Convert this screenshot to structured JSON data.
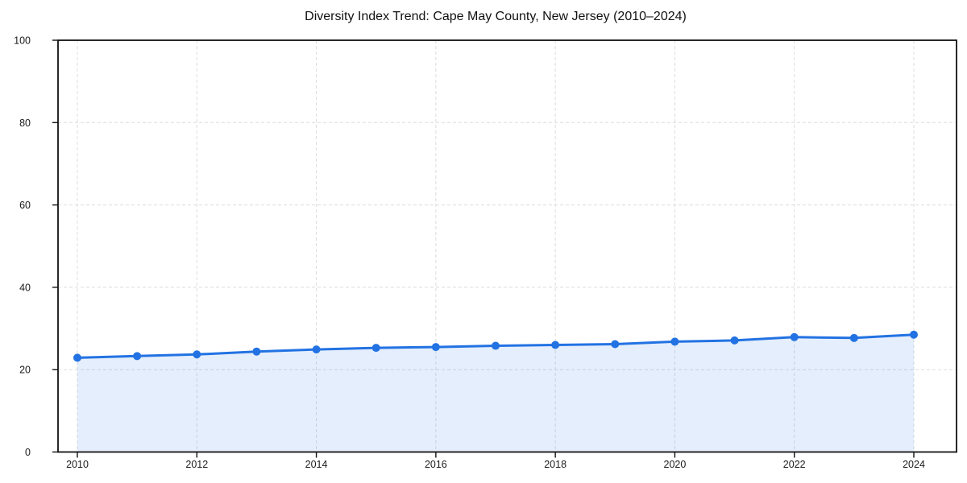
{
  "chart_data": {
    "type": "line",
    "title": "Diversity Index Trend: Cape May County, New Jersey (2010–2024)",
    "xlabel": "",
    "ylabel": "",
    "x": [
      2010,
      2011,
      2012,
      2013,
      2014,
      2015,
      2016,
      2017,
      2018,
      2019,
      2020,
      2021,
      2022,
      2023,
      2024
    ],
    "series": [
      {
        "name": "Diversity Index",
        "values": [
          22.9,
          23.3,
          23.7,
          24.4,
          24.9,
          25.3,
          25.5,
          25.8,
          26.0,
          26.2,
          26.8,
          27.1,
          27.9,
          27.7,
          28.5
        ]
      }
    ],
    "ylim": [
      0,
      100
    ],
    "yticks": [
      0,
      20,
      40,
      60,
      80,
      100
    ],
    "xticks": [
      2010,
      2012,
      2014,
      2016,
      2018,
      2020,
      2022,
      2024
    ],
    "grid": true,
    "legend_position": "none",
    "marker": "circle",
    "colors": {
      "line": "#2272e3",
      "marker": "#2272e3",
      "area_fill": "#2272e3",
      "grid": "#dcdcdc",
      "spine": "#111111",
      "text": "#1a1a1a",
      "background": "#ffffff"
    },
    "area_fill_opacity": 0.12
  }
}
